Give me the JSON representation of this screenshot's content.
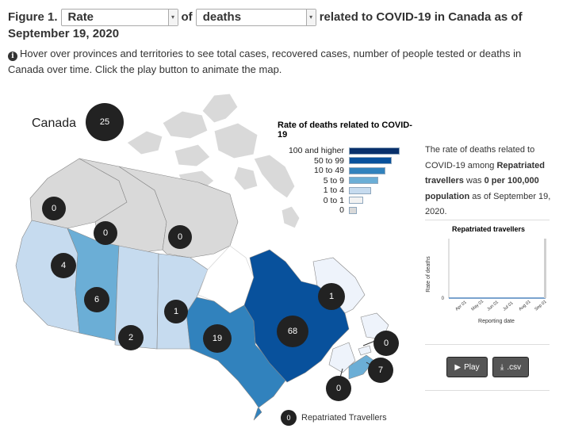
{
  "header": {
    "figure_label": "Figure 1.",
    "measure_select": "Rate",
    "of_text": "of",
    "metric_select": "deaths",
    "title_rest": "related to COVID-19 in Canada as of",
    "date_line": "September 19, 2020"
  },
  "note": {
    "icon": "info-icon",
    "text": "Hover over provinces and territories to see total cases, recovered cases, number of people tested or deaths in Canada over time. Click the play button to animate the map."
  },
  "map": {
    "canada_label": "Canada",
    "canada_value": "25",
    "regions": [
      {
        "name": "Yukon",
        "value": "0"
      },
      {
        "name": "Northwest Territories",
        "value": "0"
      },
      {
        "name": "Nunavut",
        "value": "0"
      },
      {
        "name": "British Columbia",
        "value": "4"
      },
      {
        "name": "Alberta",
        "value": "6"
      },
      {
        "name": "Saskatchewan",
        "value": "2"
      },
      {
        "name": "Manitoba",
        "value": "1"
      },
      {
        "name": "Ontario",
        "value": "19"
      },
      {
        "name": "Quebec",
        "value": "68"
      },
      {
        "name": "Newfoundland and Labrador",
        "value": "1"
      },
      {
        "name": "Prince Edward Island",
        "value": "0"
      },
      {
        "name": "Nova Scotia",
        "value": "7"
      },
      {
        "name": "New Brunswick",
        "value": "0"
      }
    ],
    "repatriated_value": "0",
    "repatriated_label": "Repatriated Travellers",
    "colors": {
      "zero": "#d9d9d9",
      "one_to_four": "#c6dbef",
      "five_to_nine": "#6baed6",
      "ten_to_49": "#3182bd",
      "fifty_to_99": "#08519c",
      "hundred_plus": "#08306b",
      "bubble": "#222222"
    }
  },
  "legend": {
    "title": "Rate of deaths related to COVID-19",
    "items": [
      {
        "label": "100 and higher",
        "color": "#08306b"
      },
      {
        "label": "50 to 99",
        "color": "#08519c"
      },
      {
        "label": "10 to 49",
        "color": "#3182bd"
      },
      {
        "label": "5 to 9",
        "color": "#6baed6"
      },
      {
        "label": "1 to 4",
        "color": "#c6dbef"
      },
      {
        "label": "0 to 1",
        "color": "#f2f2f2"
      },
      {
        "label": "0",
        "color": "#d9d9d9"
      }
    ]
  },
  "description": {
    "part1": "The rate of deaths related to COVID-19 among ",
    "bold1": "Repatriated travellers",
    "part2": " was ",
    "bold2": "0 per 100,000 population",
    "part3": " as of September 19, 2020."
  },
  "mini_chart": {
    "title": "Repatriated travellers",
    "ylabel": "Rate of deaths",
    "xlabel": "Reporting date",
    "y_tick": "0",
    "x_ticks": [
      "Apr 01",
      "May 01",
      "Jun 01",
      "Jul 01",
      "Aug 01",
      "Sep 01"
    ]
  },
  "buttons": {
    "play_label": "Play",
    "csv_label": ".csv"
  }
}
